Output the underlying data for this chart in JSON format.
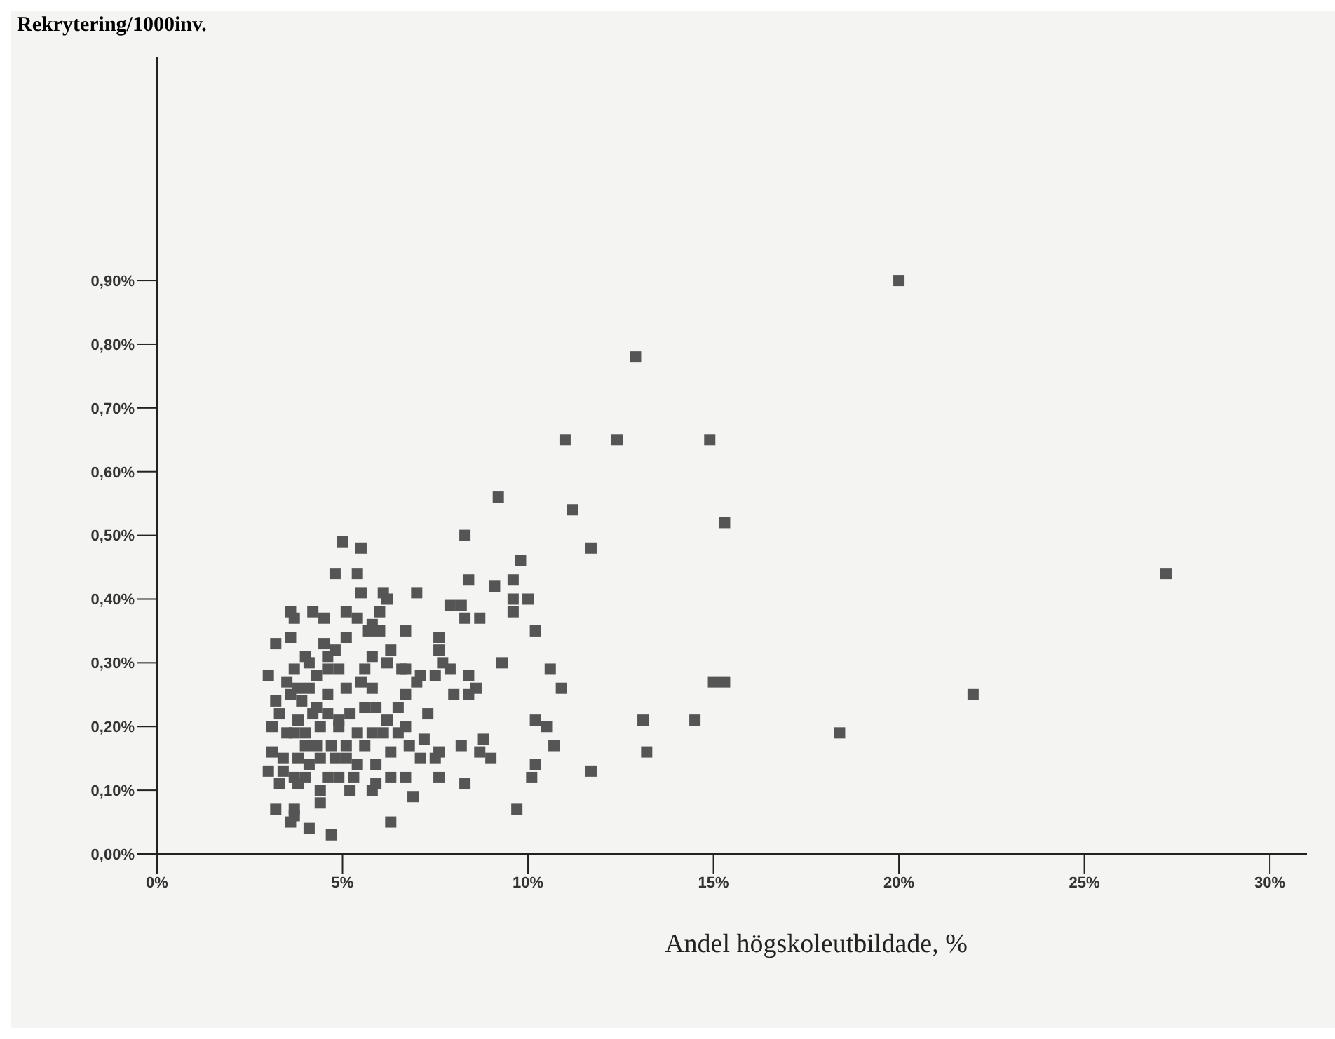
{
  "chart_data": {
    "type": "scatter",
    "title": "Rekrytering/1000inv.",
    "xlabel": "Andel högskoleutbildade, %",
    "marker": "square",
    "grid": false,
    "legend": false,
    "xlim": [
      0,
      31
    ],
    "ylim": [
      0,
      1.25
    ],
    "xticks": [
      {
        "value": 0,
        "label": "0%"
      },
      {
        "value": 5,
        "label": "5%"
      },
      {
        "value": 10,
        "label": "10%"
      },
      {
        "value": 15,
        "label": "15%"
      },
      {
        "value": 20,
        "label": "20%"
      },
      {
        "value": 25,
        "label": "25%"
      },
      {
        "value": 30,
        "label": "30%"
      }
    ],
    "yticks": [
      {
        "value": 0,
        "label": "0,00%"
      },
      {
        "value": 0.1,
        "label": "0,10%"
      },
      {
        "value": 0.2,
        "label": "0,20%"
      },
      {
        "value": 0.3,
        "label": "0,30%"
      },
      {
        "value": 0.4,
        "label": "0,40%"
      },
      {
        "value": 0.5,
        "label": "0,50%"
      },
      {
        "value": 0.6,
        "label": "0,60%"
      },
      {
        "value": 0.7,
        "label": "0,70%"
      },
      {
        "value": 0.8,
        "label": "0,80%"
      },
      {
        "value": 0.9,
        "label": "0,90%"
      }
    ],
    "series": [
      {
        "color": "#555555",
        "x": [
          8.3,
          9.8,
          8.4,
          9.1,
          9.6,
          7.0,
          7.9,
          8.2,
          8.7,
          8.3,
          9.6,
          10.0,
          9.6,
          10.2,
          7.6,
          7.6,
          7.7,
          7.9,
          8.4,
          8.6,
          8.0,
          8.4,
          7.5,
          7.1,
          9.3,
          10.6,
          10.9,
          10.2,
          10.5,
          10.7,
          10.2,
          10.1,
          9.7,
          8.8,
          8.7,
          9.0,
          8.2,
          7.6,
          7.6,
          8.3,
          7.3,
          7.2,
          6.8,
          7.1,
          7.5,
          6.9,
          6.7,
          6.7,
          6.7,
          6.7,
          6.7,
          7.0,
          5.0,
          5.5,
          4.8,
          5.4,
          6.1,
          5.5,
          6.2,
          3.6,
          3.7,
          4.2,
          4.5,
          5.1,
          5.4,
          6.0,
          5.8,
          5.7,
          6.0,
          3.6,
          3.2,
          5.1,
          4.5,
          4.0,
          4.8,
          4.6,
          5.8,
          6.3,
          6.2,
          4.1,
          3.7,
          3.0,
          3.5,
          3.8,
          4.3,
          4.6,
          4.9,
          5.6,
          6.6,
          5.5,
          5.1,
          4.1,
          3.2,
          3.6,
          4.6,
          5.8,
          3.9,
          4.3,
          4.2,
          3.3,
          3.8,
          4.6,
          4.9,
          5.6,
          5.2,
          5.9,
          6.2,
          6.5,
          3.1,
          3.5,
          3.7,
          4.0,
          4.4,
          4.9,
          5.4,
          5.8,
          6.1,
          6.5,
          4.0,
          4.3,
          4.7,
          5.1,
          5.6,
          3.1,
          3.4,
          3.8,
          4.1,
          4.4,
          4.8,
          5.1,
          5.4,
          5.9,
          6.3,
          3.0,
          3.4,
          3.7,
          4.0,
          4.6,
          4.9,
          5.3,
          5.9,
          6.3,
          3.3,
          3.8,
          4.4,
          5.2,
          5.8,
          4.4,
          3.7,
          3.2,
          3.7,
          3.6,
          4.1,
          4.7,
          6.3,
          20.0,
          12.9,
          11.0,
          12.4,
          14.9,
          9.2,
          11.2,
          15.3,
          11.7,
          27.2,
          22.0,
          18.4,
          15.0,
          15.3,
          13.1,
          14.5,
          13.2,
          11.7
        ],
        "values": [
          0.5,
          0.46,
          0.43,
          0.42,
          0.43,
          0.41,
          0.39,
          0.39,
          0.37,
          0.37,
          0.4,
          0.4,
          0.38,
          0.35,
          0.34,
          0.32,
          0.3,
          0.29,
          0.28,
          0.26,
          0.25,
          0.25,
          0.28,
          0.28,
          0.3,
          0.29,
          0.26,
          0.21,
          0.2,
          0.17,
          0.14,
          0.12,
          0.07,
          0.18,
          0.16,
          0.15,
          0.17,
          0.16,
          0.12,
          0.11,
          0.22,
          0.18,
          0.17,
          0.15,
          0.15,
          0.09,
          0.12,
          0.2,
          0.25,
          0.29,
          0.35,
          0.27,
          0.49,
          0.48,
          0.44,
          0.44,
          0.41,
          0.41,
          0.4,
          0.38,
          0.37,
          0.38,
          0.37,
          0.38,
          0.37,
          0.38,
          0.36,
          0.35,
          0.35,
          0.34,
          0.33,
          0.34,
          0.33,
          0.31,
          0.32,
          0.31,
          0.31,
          0.32,
          0.3,
          0.3,
          0.29,
          0.28,
          0.27,
          0.26,
          0.28,
          0.29,
          0.29,
          0.29,
          0.29,
          0.27,
          0.26,
          0.26,
          0.24,
          0.25,
          0.25,
          0.26,
          0.24,
          0.23,
          0.22,
          0.22,
          0.21,
          0.22,
          0.21,
          0.23,
          0.22,
          0.23,
          0.21,
          0.23,
          0.2,
          0.19,
          0.19,
          0.19,
          0.2,
          0.2,
          0.19,
          0.19,
          0.19,
          0.19,
          0.17,
          0.17,
          0.17,
          0.17,
          0.17,
          0.16,
          0.15,
          0.15,
          0.14,
          0.15,
          0.15,
          0.15,
          0.14,
          0.14,
          0.16,
          0.13,
          0.13,
          0.12,
          0.12,
          0.12,
          0.12,
          0.12,
          0.11,
          0.12,
          0.11,
          0.11,
          0.1,
          0.1,
          0.1,
          0.08,
          0.07,
          0.07,
          0.06,
          0.05,
          0.04,
          0.03,
          0.05,
          0.9,
          0.78,
          0.65,
          0.65,
          0.65,
          0.56,
          0.54,
          0.52,
          0.48,
          0.44,
          0.25,
          0.19,
          0.27,
          0.27,
          0.21,
          0.21,
          0.16,
          0.13
        ]
      }
    ]
  }
}
